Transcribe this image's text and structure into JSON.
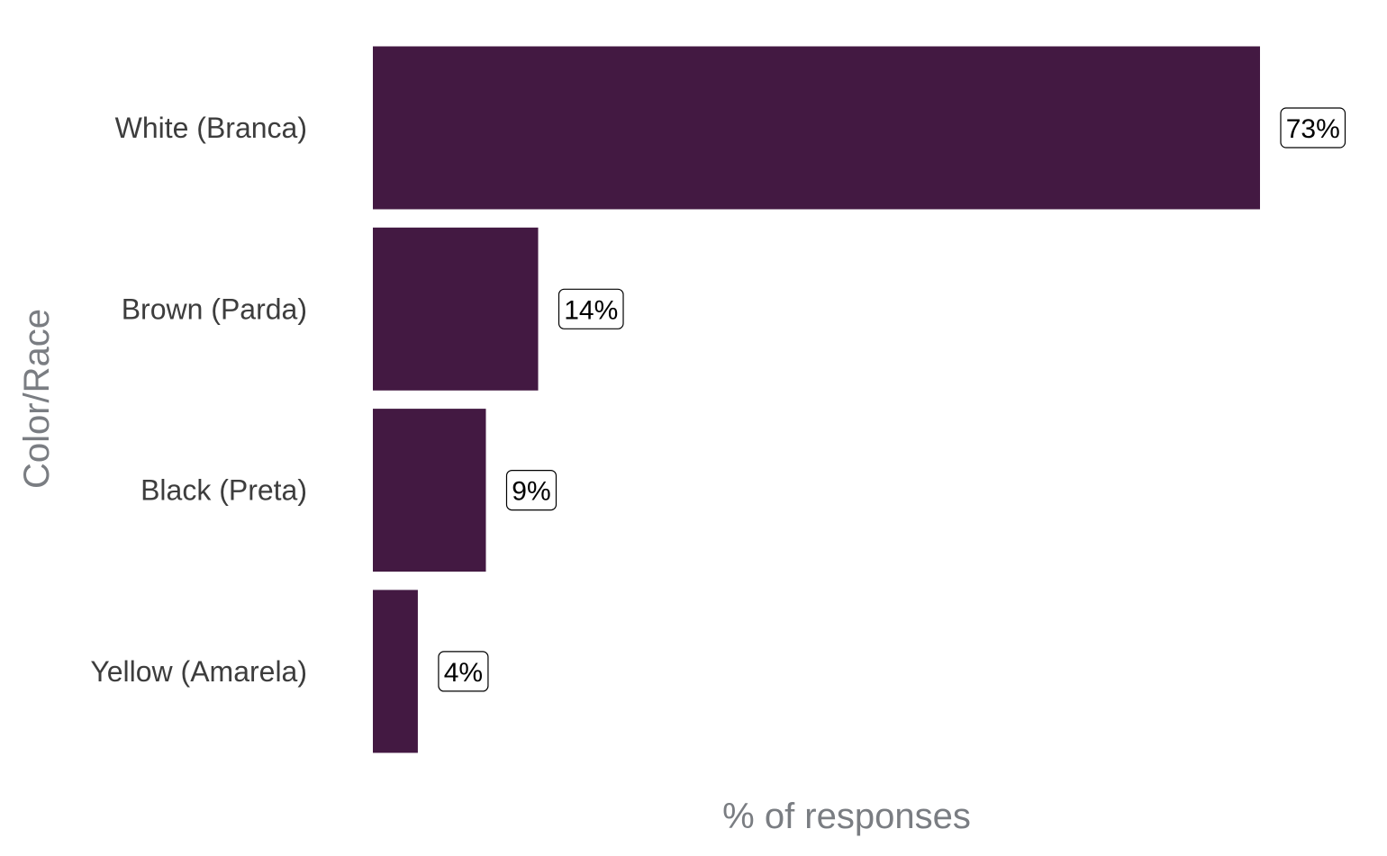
{
  "chart_data": {
    "type": "bar",
    "orientation": "horizontal",
    "title": "",
    "xlabel": "% of responses",
    "ylabel": "Color/Race",
    "categories": [
      "White (Branca)",
      "Brown (Parda)",
      "Black (Preta)",
      "Yellow (Amarela)"
    ],
    "values": [
      73,
      13.6,
      9.3,
      3.7
    ],
    "data_labels": [
      "73%",
      "14%",
      "9%",
      "4%"
    ],
    "xlim": [
      0,
      73
    ],
    "grid": false,
    "legend": "none",
    "bar_color": "#431942"
  }
}
